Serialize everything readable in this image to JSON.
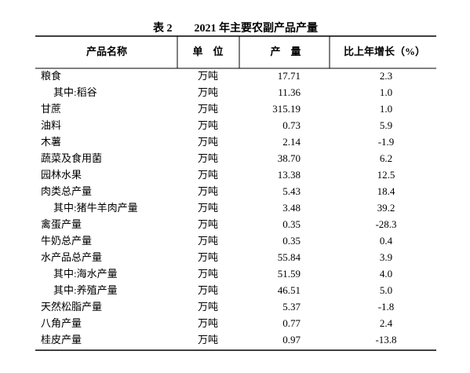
{
  "title": "表 2　　2021 年主要农副产品产量",
  "table": {
    "header": [
      "产品名称",
      "单　位",
      "产　量",
      "比上年增长（%）"
    ],
    "rows": [
      [
        "粮食",
        "万吨",
        "17.71",
        "2.3"
      ],
      [
        "其中:稻谷",
        "万吨",
        "11.36",
        "1.0"
      ],
      [
        "甘蔗",
        "万吨",
        "315.19",
        "1.0"
      ],
      [
        "油料",
        "万吨",
        "0.73",
        "5.9"
      ],
      [
        "木薯",
        "万吨",
        "2.14",
        "-1.9"
      ],
      [
        "蔬菜及食用菌",
        "万吨",
        "38.70",
        "6.2"
      ],
      [
        "园林水果",
        "万吨",
        "13.38",
        "12.5"
      ],
      [
        "肉类总产量",
        "万吨",
        "5.43",
        "18.4"
      ],
      [
        "其中:猪牛羊肉产量",
        "万吨",
        "3.48",
        "39.2"
      ],
      [
        "禽蛋产量",
        "万吨",
        "0.35",
        "-28.3"
      ],
      [
        "牛奶总产量",
        "万吨",
        "0.35",
        "0.4"
      ],
      [
        "水产品总产量",
        "万吨",
        "55.84",
        "3.9"
      ],
      [
        "其中:海水产量",
        "万吨",
        "51.59",
        "4.0"
      ],
      [
        "其中:养殖产量",
        "万吨",
        "46.51",
        "5.0"
      ],
      [
        "天然松脂产量",
        "万吨",
        "5.37",
        "-1.8"
      ],
      [
        "八角产量",
        "万吨",
        "0.77",
        "2.4"
      ],
      [
        "桂皮产量",
        "万吨",
        "0.97",
        "-13.8"
      ]
    ]
  }
}
